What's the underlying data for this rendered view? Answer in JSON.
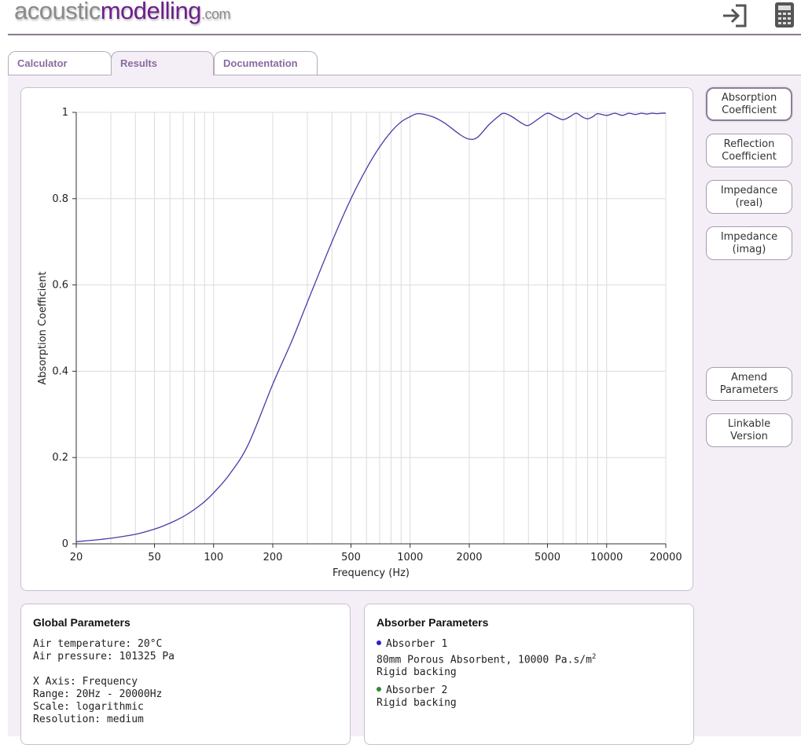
{
  "header": {
    "logo_part1": "acoustic",
    "logo_part2": "modelling",
    "logo_part3": ".com",
    "icons": [
      "login-icon",
      "calculator-icon"
    ]
  },
  "tabs": [
    {
      "label": "Calculator",
      "active": false
    },
    {
      "label": "Results",
      "active": true
    },
    {
      "label": "Documentation",
      "active": false
    }
  ],
  "side_buttons": [
    {
      "label": "Absorption\nCoefficient",
      "active": true
    },
    {
      "label": "Reflection\nCoefficient",
      "active": false
    },
    {
      "label": "Impedance\n(real)",
      "active": false
    },
    {
      "label": "Impedance\n(imag)",
      "active": false
    },
    {
      "label": "Amend\nParameters",
      "active": false
    },
    {
      "label": "Linkable\nVersion",
      "active": false
    }
  ],
  "chart_data": {
    "type": "line",
    "xlabel": "Frequency (Hz)",
    "ylabel": "Absorption Coefficient",
    "x_scale": "log",
    "xlim": [
      20,
      20000
    ],
    "ylim": [
      0,
      1
    ],
    "x_ticks": [
      20,
      50,
      100,
      200,
      500,
      1000,
      2000,
      5000,
      10000,
      20000
    ],
    "x_tick_labels": [
      "20",
      "50",
      "100",
      "200",
      "500",
      "1000",
      "2000",
      "5000",
      "10000",
      "20000"
    ],
    "y_ticks": [
      0,
      0.2,
      0.4,
      0.6,
      0.8,
      1
    ],
    "y_tick_labels": [
      "0",
      "0.2",
      "0.4",
      "0.6",
      "0.8",
      "1"
    ],
    "grid": true,
    "series_color": "#4a3aa8",
    "series": [
      {
        "x": [
          20,
          25,
          30,
          40,
          50,
          60,
          70,
          80,
          90,
          100,
          120,
          150,
          200,
          250,
          300,
          400,
          500,
          600,
          700,
          800,
          900,
          1000,
          1100,
          1300,
          1500,
          1800,
          2000,
          2200,
          2500,
          2800,
          3000,
          3300,
          3700,
          4000,
          4500,
          5000,
          5500,
          6000,
          6500,
          7000,
          7500,
          8000,
          8500,
          9000,
          10000,
          11000,
          12000,
          13000,
          14000,
          15000,
          16000,
          17000,
          18000,
          19000,
          20000
        ],
        "y": [
          0.005,
          0.009,
          0.013,
          0.022,
          0.034,
          0.048,
          0.063,
          0.08,
          0.098,
          0.118,
          0.16,
          0.23,
          0.37,
          0.47,
          0.56,
          0.7,
          0.8,
          0.87,
          0.92,
          0.955,
          0.978,
          0.99,
          0.997,
          0.99,
          0.975,
          0.948,
          0.938,
          0.942,
          0.97,
          0.99,
          0.998,
          0.99,
          0.975,
          0.97,
          0.985,
          0.998,
          0.99,
          0.983,
          0.99,
          0.998,
          0.99,
          0.985,
          0.99,
          0.997,
          0.993,
          0.998,
          0.993,
          0.998,
          0.995,
          0.998,
          0.996,
          0.998,
          0.997,
          0.998,
          0.998
        ]
      }
    ]
  },
  "global_params": {
    "title": "Global Parameters",
    "air_temp": "Air temperature: 20°C",
    "air_pressure": "Air pressure: 101325 Pa",
    "x_axis": "X Axis: Frequency",
    "range": "Range: 20Hz - 20000Hz",
    "scale": "Scale: logarithmic",
    "resolution": "Resolution: medium"
  },
  "absorber_params": {
    "title": "Absorber Parameters",
    "absorber1_name": "Absorber 1",
    "absorber1_color": "#2a1fd6",
    "absorber1_desc": "80mm Porous Absorbent, 10000 Pa.s/m",
    "absorber1_desc_sup": "2",
    "absorber1_backing": "Rigid backing",
    "absorber2_name": "Absorber 2",
    "absorber2_color": "#2f8a2f",
    "absorber2_backing": "Rigid backing"
  }
}
